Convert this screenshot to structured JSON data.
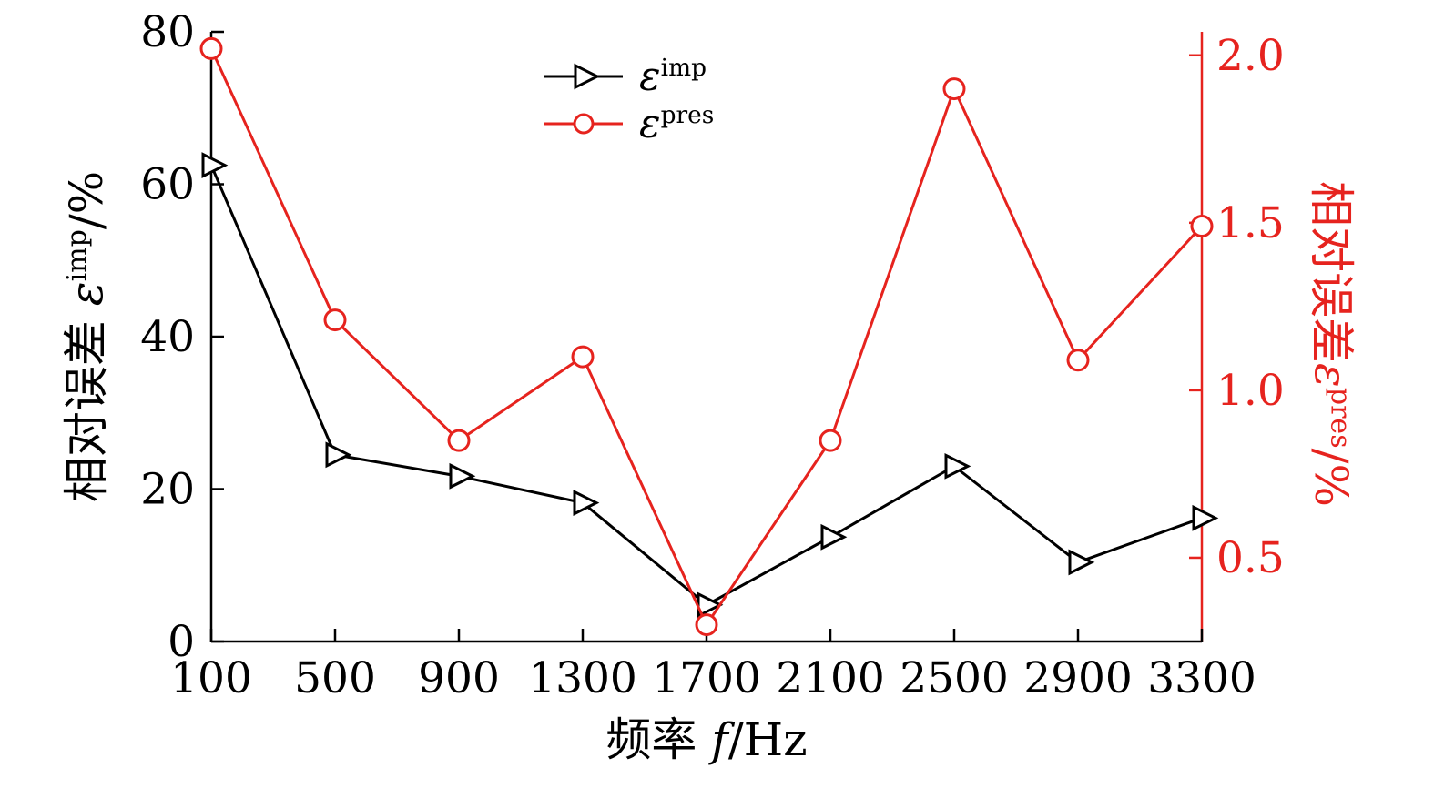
{
  "colors": {
    "imp": "#000000",
    "pres": "#e6231e",
    "background": "#ffffff"
  },
  "chart_data": {
    "type": "line",
    "x": [
      100,
      500,
      900,
      1300,
      1700,
      2100,
      2500,
      2900,
      3300
    ],
    "series": [
      {
        "name": "imp",
        "label_base": "ε",
        "label_sup": "imp",
        "axis": "left",
        "color": "#000000",
        "marker": "triangle-right",
        "values": [
          62.5,
          24.5,
          21.7,
          18.2,
          4.8,
          13.7,
          23.0,
          10.4,
          16.2
        ]
      },
      {
        "name": "pres",
        "label_base": "ε",
        "label_sup": "pres",
        "axis": "right",
        "color": "#e6231e",
        "marker": "circle",
        "values": [
          2.02,
          1.21,
          0.85,
          1.1,
          0.3,
          0.85,
          1.9,
          1.09,
          1.49
        ]
      }
    ],
    "x_axis": {
      "label_prefix": "频率 ",
      "label_italic": "f",
      "label_suffix": "/Hz",
      "tick_values": [
        100,
        500,
        900,
        1300,
        1700,
        2100,
        2500,
        2900,
        3300
      ],
      "tick_labels": [
        "100",
        "500",
        "900",
        "1300",
        "1700",
        "2100",
        "2500",
        "2900",
        "3300"
      ],
      "range": [
        100,
        3300
      ]
    },
    "left_axis": {
      "label_prefix": "相对误差 ",
      "label_symbol": "ε",
      "label_sup": "imp",
      "label_suffix": "/%",
      "tick_values": [
        0,
        20,
        40,
        60,
        80
      ],
      "tick_labels": [
        "0",
        "20",
        "40",
        "60",
        "80"
      ],
      "range": [
        0,
        80
      ]
    },
    "right_axis": {
      "label_prefix": "相对误差",
      "label_symbol": "ε",
      "label_sup": "pres",
      "label_suffix": "/%",
      "tick_values": [
        0.5,
        1.0,
        1.5,
        2.0
      ],
      "tick_labels": [
        "0.5",
        "1.0",
        "1.5",
        "2.0"
      ],
      "range": [
        0.25,
        2.07
      ]
    },
    "legend_position": "top-center",
    "grid": false,
    "title": ""
  }
}
